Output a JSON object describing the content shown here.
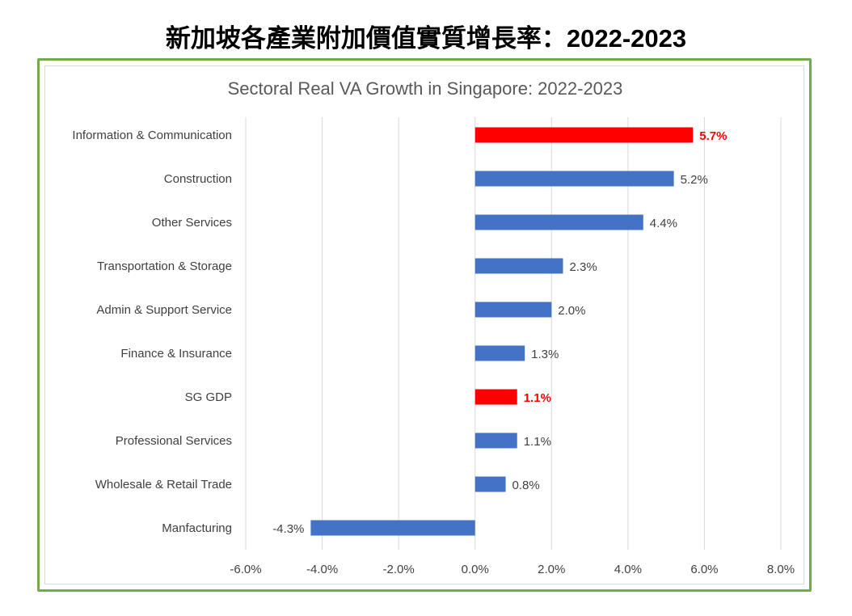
{
  "header": {
    "title": "新加坡各產業附加價值實質增長率：2022-2023"
  },
  "chart_data": {
    "type": "bar",
    "orientation": "horizontal",
    "title": "Sectoral Real VA Growth in Singapore: 2022-2023",
    "categories": [
      "Information & Communication",
      "Construction",
      "Other Services",
      "Transportation & Storage",
      "Admin & Support Service",
      "Finance & Insurance",
      "SG GDP",
      "Professional Services",
      "Wholesale & Retail Trade",
      "Manfacturing"
    ],
    "values": [
      5.7,
      5.2,
      4.4,
      2.3,
      2.0,
      1.3,
      1.1,
      1.1,
      0.8,
      -4.3
    ],
    "data_labels": [
      "5.7%",
      "5.2%",
      "4.4%",
      "2.3%",
      "2.0%",
      "1.3%",
      "1.1%",
      "1.1%",
      "0.8%",
      "-4.3%"
    ],
    "highlighted": [
      true,
      false,
      false,
      false,
      false,
      false,
      true,
      false,
      false,
      false
    ],
    "xlim": [
      -6,
      8
    ],
    "xticks": [
      -6,
      -4,
      -2,
      0,
      2,
      4,
      6,
      8
    ],
    "xtick_labels": [
      "-6.0%",
      "-4.0%",
      "-2.0%",
      "0.0%",
      "2.0%",
      "4.0%",
      "6.0%",
      "8.0%"
    ],
    "xlabel": "",
    "ylabel": "",
    "grid": "vertical",
    "colors": {
      "default": "#4472c4",
      "highlight": "#ff0000",
      "frame": "#70ad47"
    }
  }
}
